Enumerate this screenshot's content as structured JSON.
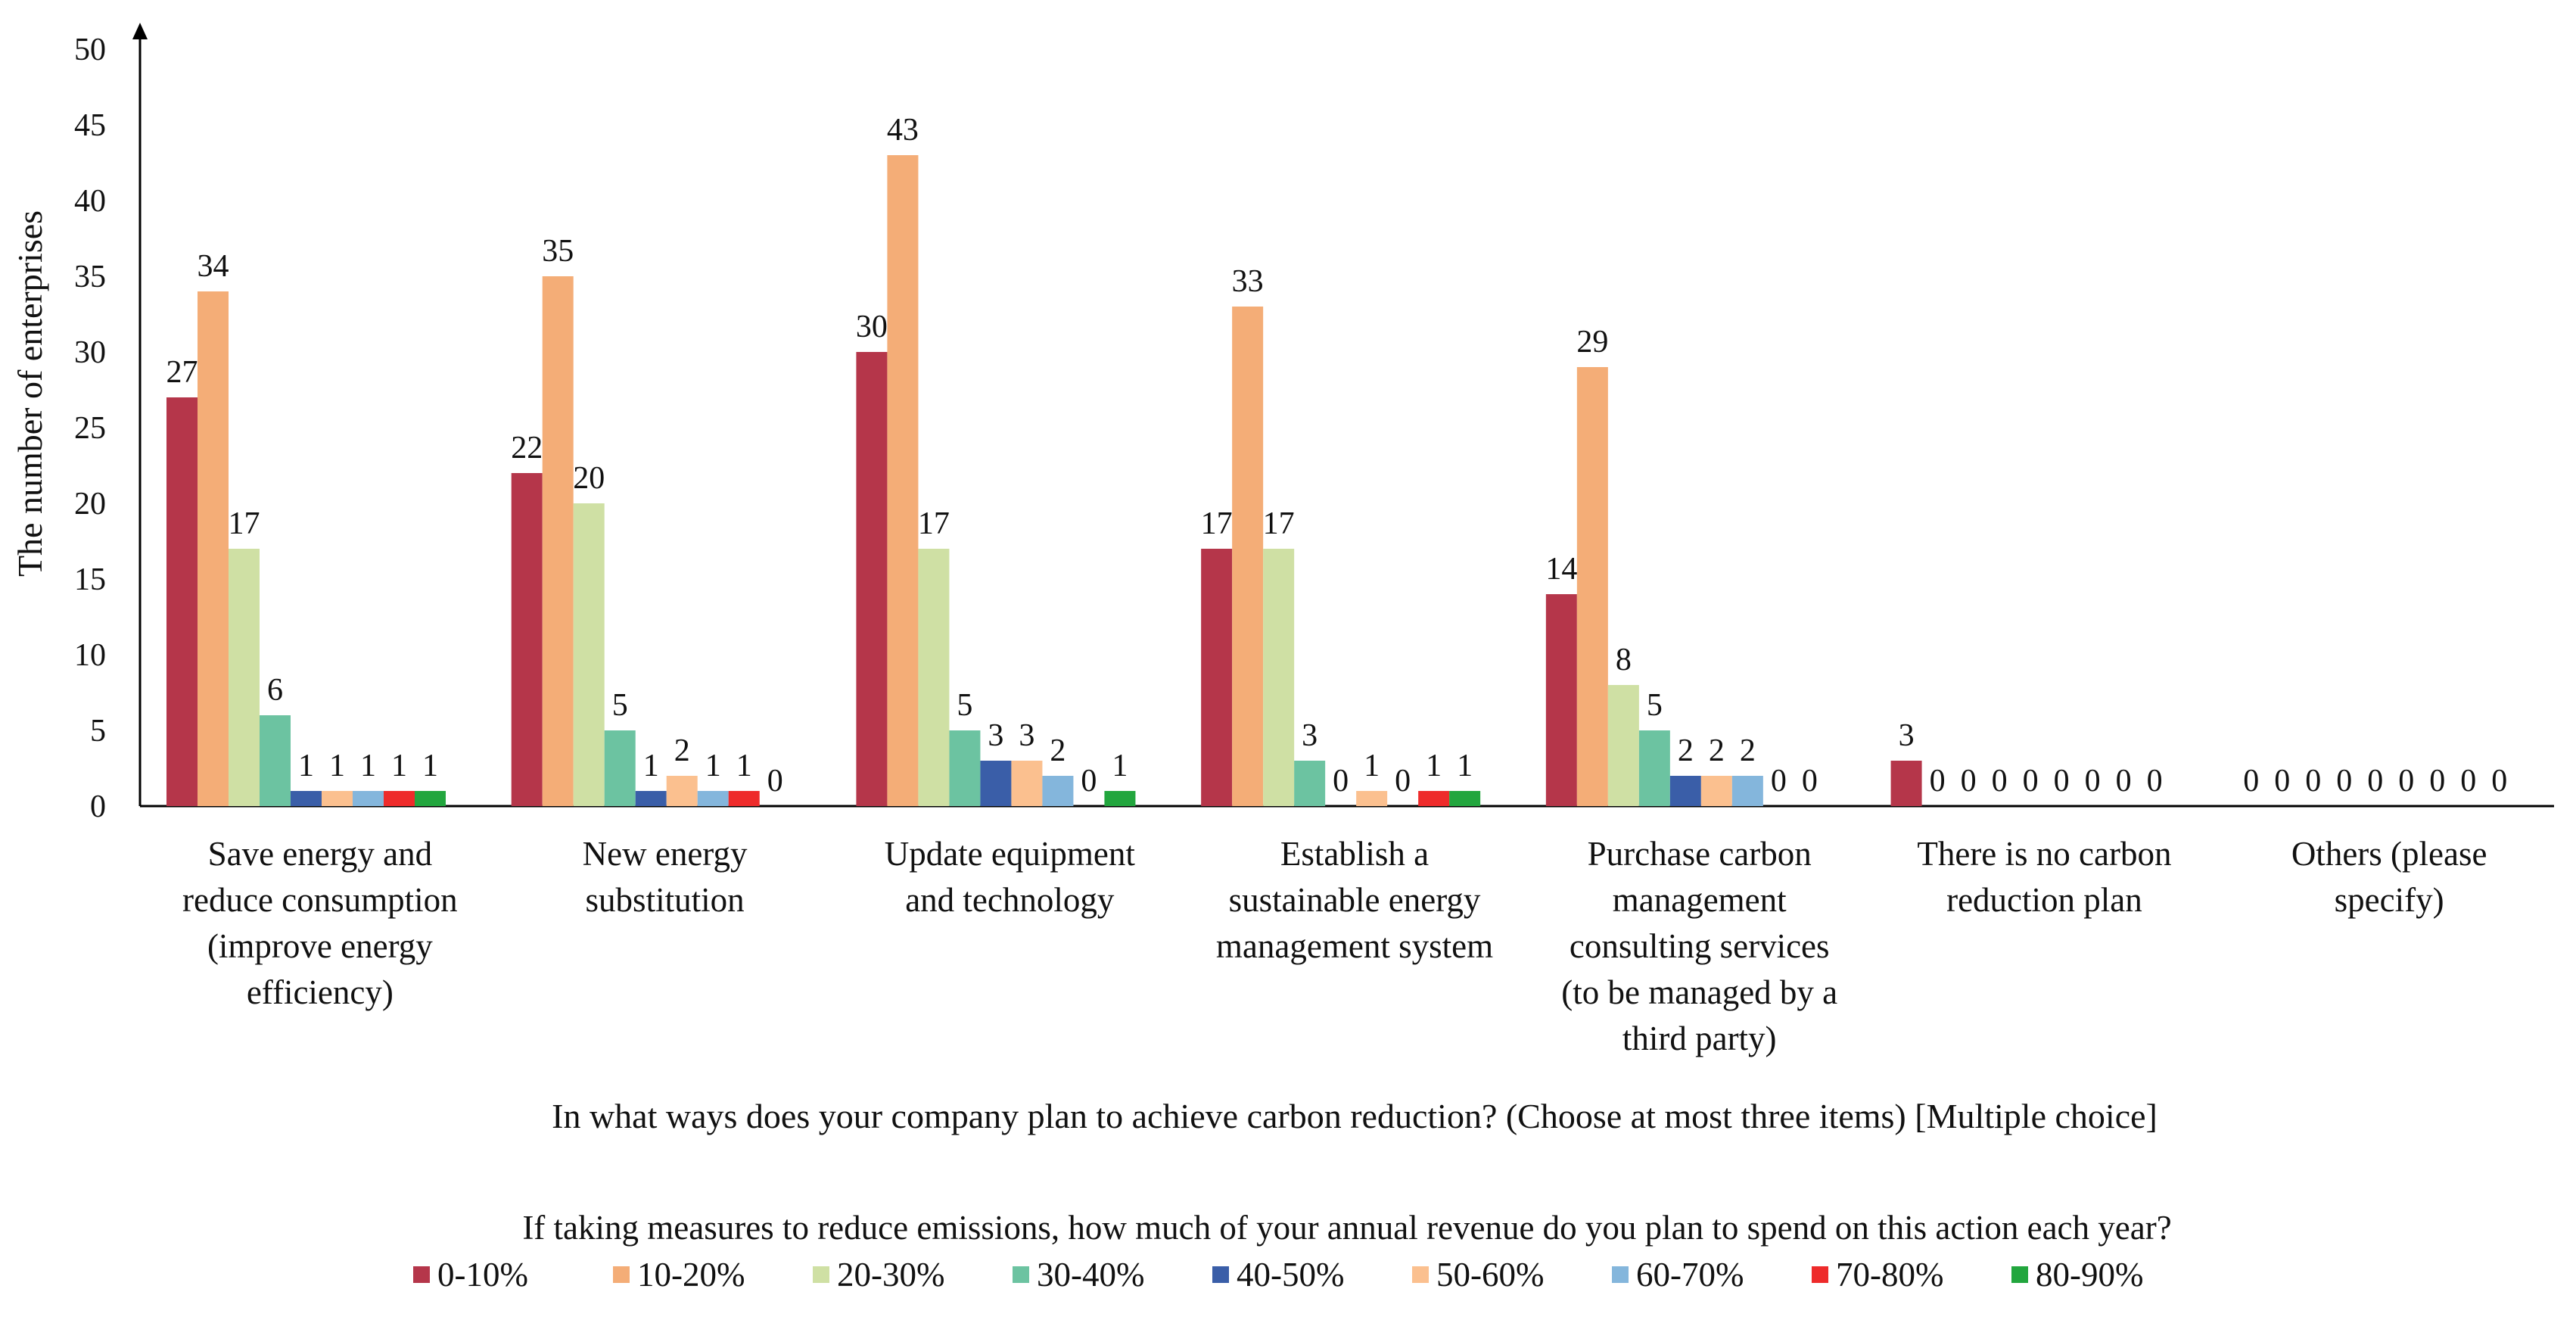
{
  "chart_data": {
    "type": "bar",
    "ylabel": "The number of enterprises",
    "xlabel": "In what ways does your company plan to achieve carbon reduction? (Choose at most three items) [Multiple choice]",
    "legend_title": "If taking measures to reduce emissions, how much of your annual revenue do you plan to spend on this action each year?",
    "legend_position": "bottom",
    "ylim": [
      0,
      50
    ],
    "yticks": [
      "0",
      "5",
      "10",
      "15",
      "20",
      "25",
      "30",
      "35",
      "40",
      "45",
      "50"
    ],
    "grid": false,
    "categories": [
      [
        "Save energy and",
        "reduce consumption",
        "(improve energy",
        "efficiency)"
      ],
      [
        "New energy",
        "substitution"
      ],
      [
        "Update equipment",
        "and technology"
      ],
      [
        "Establish a",
        "sustainable energy",
        "management system"
      ],
      [
        "Purchase carbon",
        "management",
        "consulting services",
        "(to be managed by a",
        "third party)"
      ],
      [
        "There is no carbon",
        "reduction plan"
      ],
      [
        "Others (please",
        "specify)"
      ]
    ],
    "series": [
      {
        "name": "0-10%",
        "color": "#b5364a",
        "values": [
          27,
          22,
          30,
          17,
          14,
          3,
          0
        ]
      },
      {
        "name": "10-20%",
        "color": "#f4ad77",
        "values": [
          34,
          35,
          43,
          33,
          29,
          0,
          0
        ]
      },
      {
        "name": "20-30%",
        "color": "#cfe0a4",
        "values": [
          17,
          20,
          17,
          17,
          8,
          0,
          0
        ]
      },
      {
        "name": "30-40%",
        "color": "#6cc3a1",
        "values": [
          6,
          5,
          5,
          3,
          5,
          0,
          0
        ]
      },
      {
        "name": "40-50%",
        "color": "#3a5ea8",
        "values": [
          1,
          1,
          3,
          0,
          2,
          0,
          0
        ]
      },
      {
        "name": "50-60%",
        "color": "#fbc08f",
        "values": [
          1,
          2,
          3,
          1,
          2,
          0,
          0
        ]
      },
      {
        "name": "60-70%",
        "color": "#84b6dc",
        "values": [
          1,
          1,
          2,
          0,
          2,
          0,
          0
        ]
      },
      {
        "name": "70-80%",
        "color": "#ee2b2b",
        "values": [
          1,
          1,
          0,
          1,
          0,
          0,
          0
        ]
      },
      {
        "name": "80-90%",
        "color": "#22a63e",
        "values": [
          1,
          0,
          1,
          1,
          0,
          0,
          0
        ]
      }
    ]
  }
}
